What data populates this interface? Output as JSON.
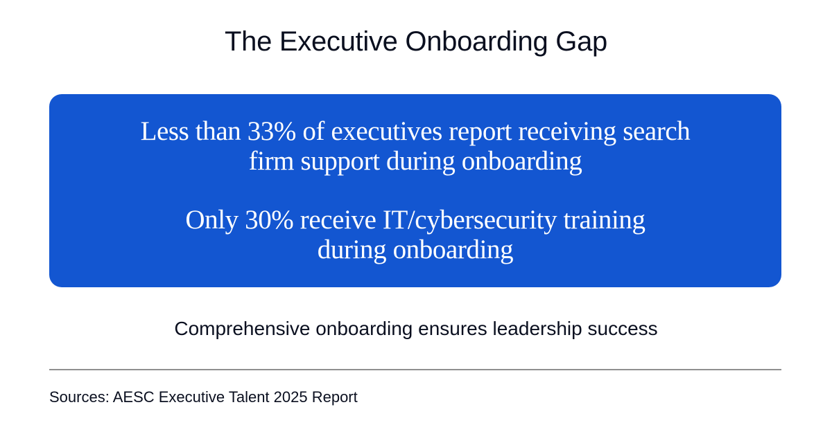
{
  "title": "The Executive Onboarding Gap",
  "stats": [
    {
      "lines": [
        "Less than 33% of executives report receiving search",
        "firm support during onboarding"
      ]
    },
    {
      "lines": [
        "Only 30% receive IT/cybersecurity training",
        "during onboarding"
      ]
    }
  ],
  "tagline": "Comprehensive onboarding ensures leadership success",
  "sources": "Sources: AESC Executive Talent 2025 Report",
  "colors": {
    "box_background": "#1356d1",
    "box_text": "#ffffff",
    "text": "#0a0f1f",
    "divider": "#8f8f8f"
  }
}
